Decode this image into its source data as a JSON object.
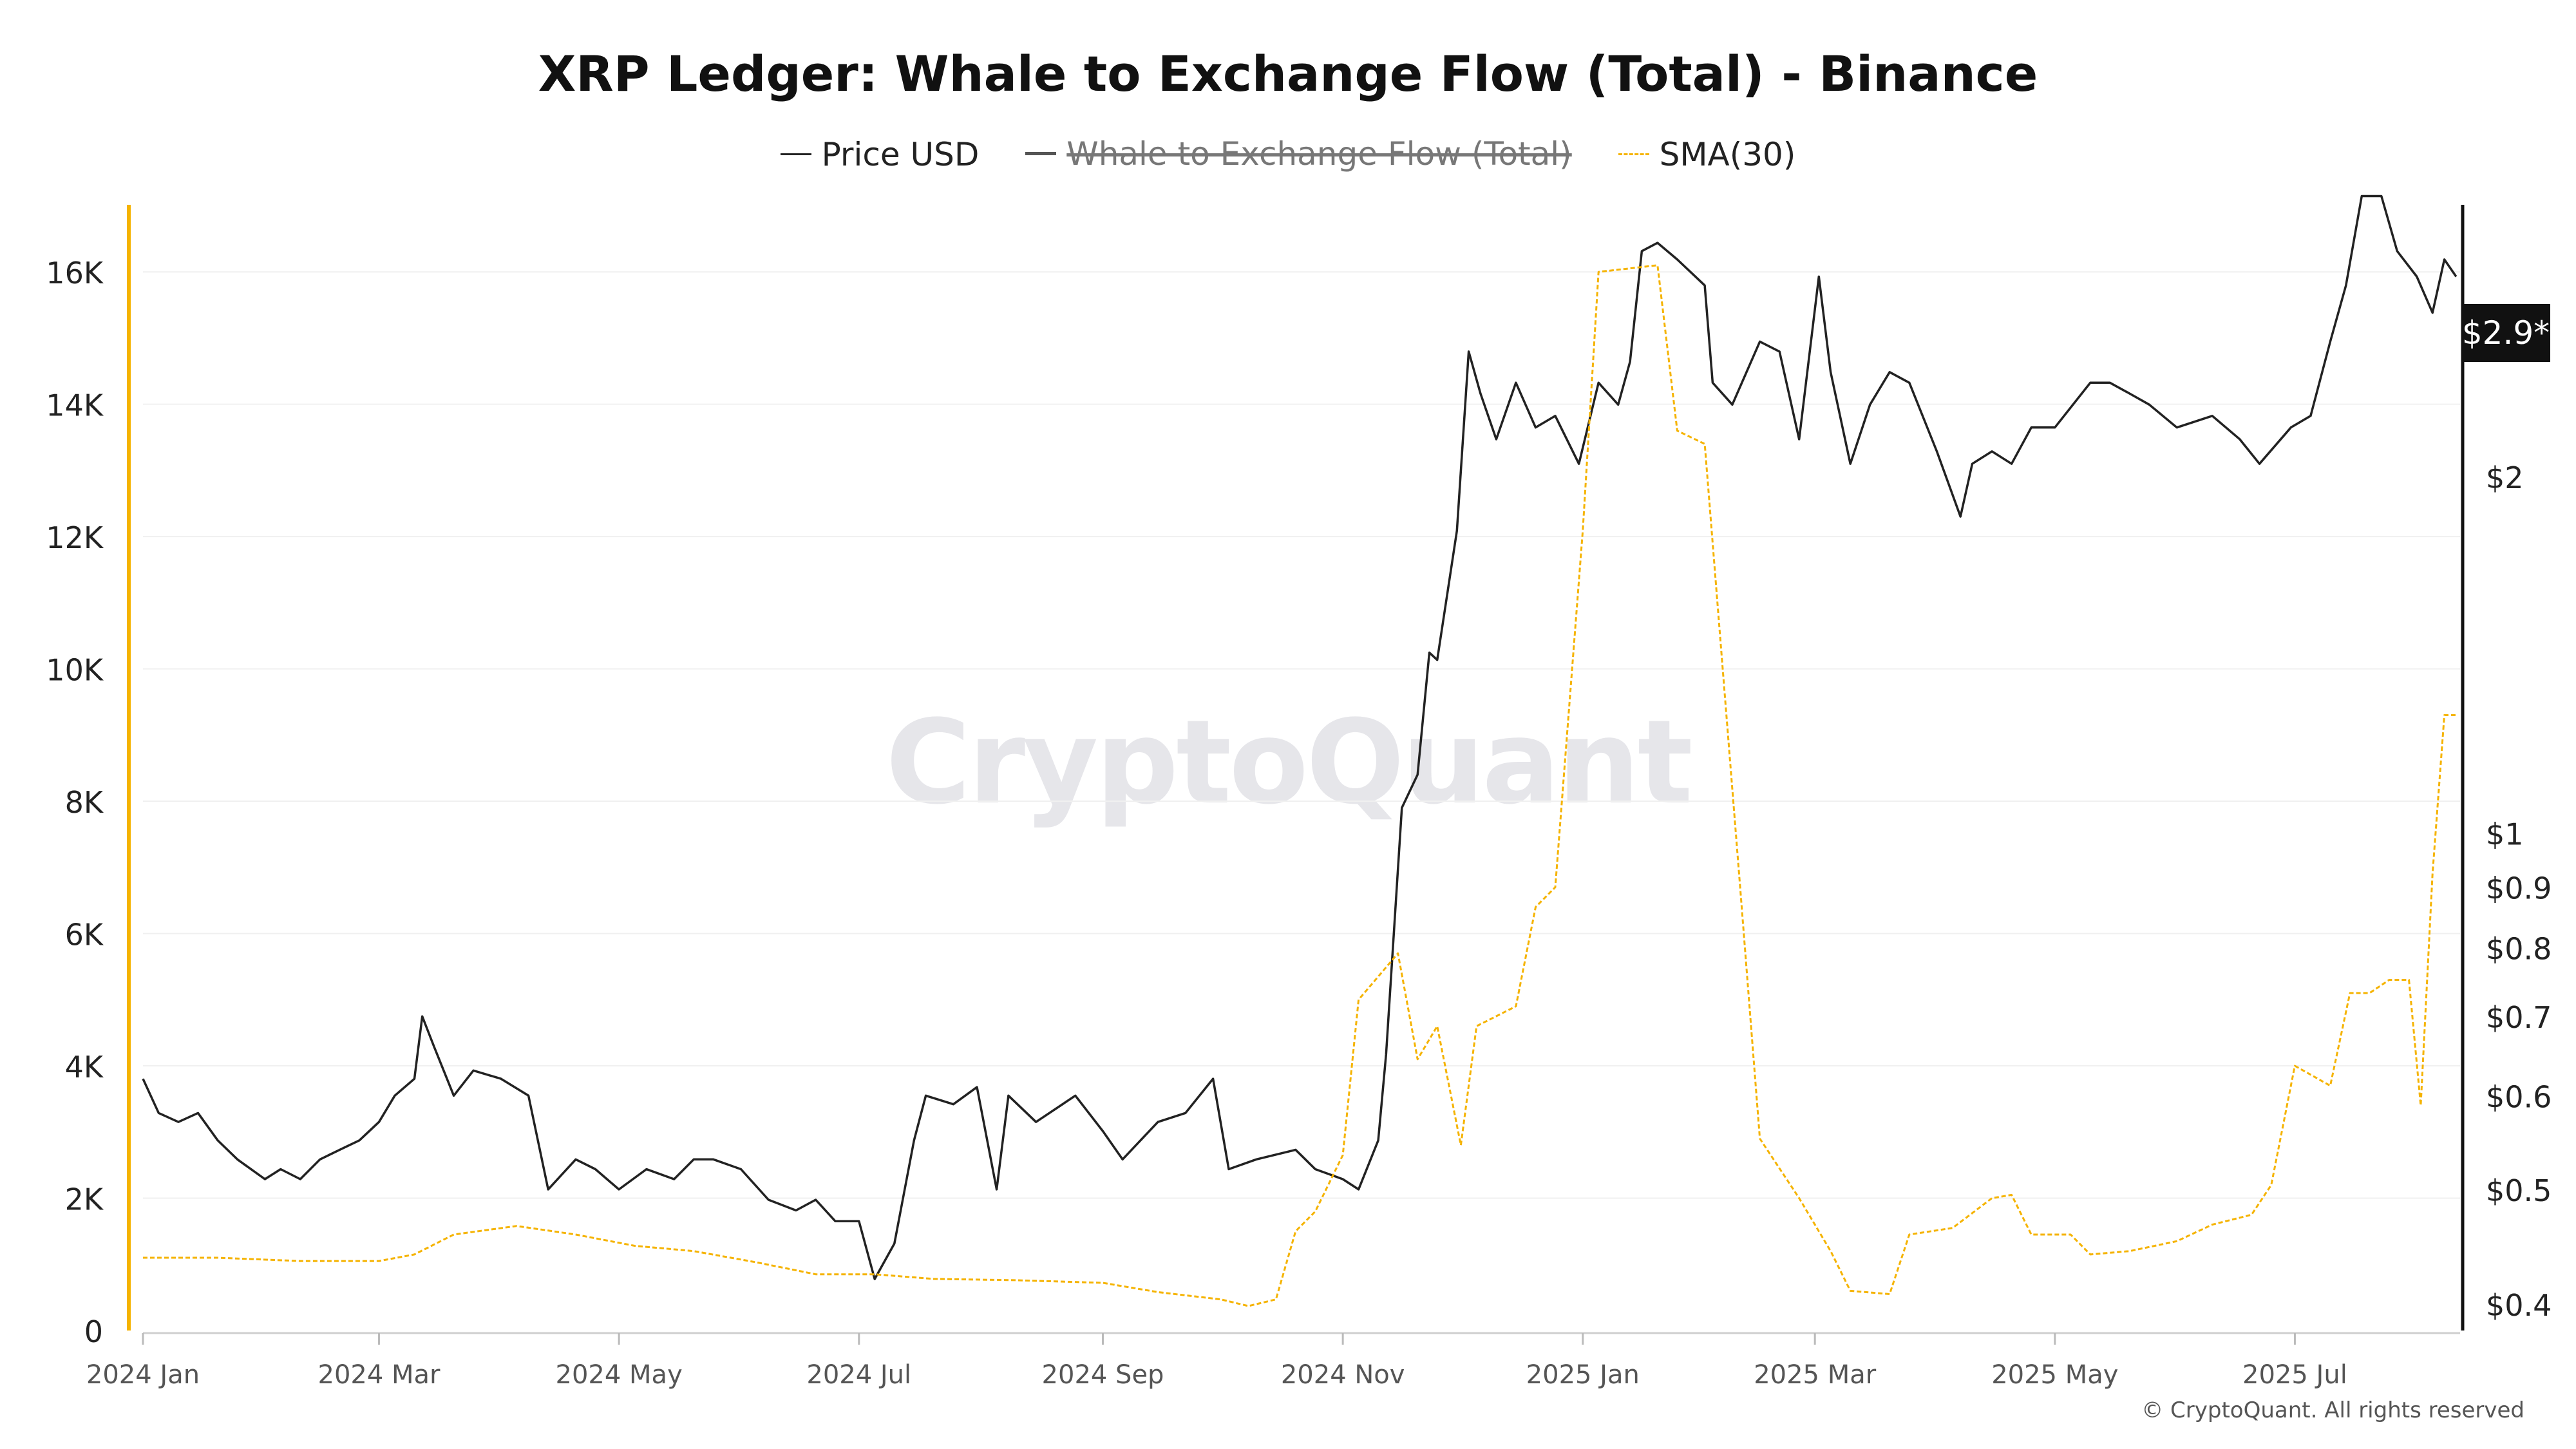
{
  "page": {
    "copyright": "© CryptoQuant. All rights reserved",
    "watermark": "CryptoQuant",
    "price_tag": "$2.9*"
  },
  "chart_data": {
    "type": "line",
    "title": "XRP Ledger: Whale to Exchange Flow (Total) - Binance",
    "legend": {
      "placement": "top-center",
      "entries": [
        {
          "name": "Price USD",
          "color": "#222222",
          "style": "solid",
          "hidden": false
        },
        {
          "name": "Whale to Exchange Flow (Total)",
          "color": "#555555",
          "style": "solid",
          "hidden": true
        },
        {
          "name": "SMA(30)",
          "color": "#f5b300",
          "style": "dashed",
          "hidden": false
        }
      ]
    },
    "colors": {
      "price": "#222222",
      "sma": "#f5b300",
      "left_axis": "#f5b300",
      "right_axis": "#111111",
      "grid": "#f0f0f0"
    },
    "grid": true,
    "x_axis": {
      "start": "2024-01-01",
      "end": "2025-08-12",
      "ticks": [
        {
          "date": "2024-01-01",
          "label": "2024 Jan"
        },
        {
          "date": "2024-03-01",
          "label": "2024 Mar"
        },
        {
          "date": "2024-05-01",
          "label": "2024 May"
        },
        {
          "date": "2024-07-01",
          "label": "2024 Jul"
        },
        {
          "date": "2024-09-01",
          "label": "2024 Sep"
        },
        {
          "date": "2024-11-01",
          "label": "2024 Nov"
        },
        {
          "date": "2025-01-01",
          "label": "2025 Jan"
        },
        {
          "date": "2025-03-01",
          "label": "2025 Mar"
        },
        {
          "date": "2025-05-01",
          "label": "2025 May"
        },
        {
          "date": "2025-07-01",
          "label": "2025 Jul"
        }
      ]
    },
    "y_left": {
      "min": 0,
      "max": 16800,
      "ticks": [
        {
          "value": 0,
          "label": "0"
        },
        {
          "value": 2000,
          "label": "2K"
        },
        {
          "value": 4000,
          "label": "4K"
        },
        {
          "value": 6000,
          "label": "6K"
        },
        {
          "value": 8000,
          "label": "8K"
        },
        {
          "value": 10000,
          "label": "10K"
        },
        {
          "value": 12000,
          "label": "12K"
        },
        {
          "value": 14000,
          "label": "14K"
        },
        {
          "value": 16000,
          "label": "16K"
        }
      ]
    },
    "y_right": {
      "scale": "log",
      "min": 0.38,
      "max": 3.3,
      "ticks": [
        {
          "value": 0.4,
          "label": "$0.4"
        },
        {
          "value": 0.5,
          "label": "$0.5"
        },
        {
          "value": 0.6,
          "label": "$0.6"
        },
        {
          "value": 0.7,
          "label": "$0.7"
        },
        {
          "value": 0.8,
          "label": "$0.8"
        },
        {
          "value": 0.9,
          "label": "$0.9"
        },
        {
          "value": 1,
          "label": "$1"
        },
        {
          "value": 2,
          "label": "$2"
        }
      ]
    },
    "series": [
      {
        "name": "Price USD",
        "axis": "right",
        "points": [
          [
            "2024-01-01",
            0.62
          ],
          [
            "2024-01-05",
            0.58
          ],
          [
            "2024-01-10",
            0.57
          ],
          [
            "2024-01-15",
            0.58
          ],
          [
            "2024-01-20",
            0.55
          ],
          [
            "2024-01-25",
            0.53
          ],
          [
            "2024-02-01",
            0.51
          ],
          [
            "2024-02-05",
            0.52
          ],
          [
            "2024-02-10",
            0.51
          ],
          [
            "2024-02-15",
            0.53
          ],
          [
            "2024-02-20",
            0.54
          ],
          [
            "2024-02-25",
            0.55
          ],
          [
            "2024-03-01",
            0.57
          ],
          [
            "2024-03-05",
            0.6
          ],
          [
            "2024-03-10",
            0.62
          ],
          [
            "2024-03-12",
            0.7
          ],
          [
            "2024-03-15",
            0.66
          ],
          [
            "2024-03-20",
            0.6
          ],
          [
            "2024-03-25",
            0.63
          ],
          [
            "2024-04-01",
            0.62
          ],
          [
            "2024-04-08",
            0.6
          ],
          [
            "2024-04-13",
            0.5
          ],
          [
            "2024-04-20",
            0.53
          ],
          [
            "2024-04-25",
            0.52
          ],
          [
            "2024-05-01",
            0.5
          ],
          [
            "2024-05-08",
            0.52
          ],
          [
            "2024-05-15",
            0.51
          ],
          [
            "2024-05-20",
            0.53
          ],
          [
            "2024-05-25",
            0.53
          ],
          [
            "2024-06-01",
            0.52
          ],
          [
            "2024-06-08",
            0.49
          ],
          [
            "2024-06-15",
            0.48
          ],
          [
            "2024-06-20",
            0.49
          ],
          [
            "2024-06-25",
            0.47
          ],
          [
            "2024-07-01",
            0.47
          ],
          [
            "2024-07-05",
            0.42
          ],
          [
            "2024-07-10",
            0.45
          ],
          [
            "2024-07-15",
            0.55
          ],
          [
            "2024-07-18",
            0.6
          ],
          [
            "2024-07-25",
            0.59
          ],
          [
            "2024-07-31",
            0.61
          ],
          [
            "2024-08-05",
            0.5
          ],
          [
            "2024-08-08",
            0.6
          ],
          [
            "2024-08-15",
            0.57
          ],
          [
            "2024-08-25",
            0.6
          ],
          [
            "2024-09-01",
            0.56
          ],
          [
            "2024-09-06",
            0.53
          ],
          [
            "2024-09-15",
            0.57
          ],
          [
            "2024-09-22",
            0.58
          ],
          [
            "2024-09-29",
            0.62
          ],
          [
            "2024-10-03",
            0.52
          ],
          [
            "2024-10-10",
            0.53
          ],
          [
            "2024-10-20",
            0.54
          ],
          [
            "2024-10-25",
            0.52
          ],
          [
            "2024-11-01",
            0.51
          ],
          [
            "2024-11-05",
            0.5
          ],
          [
            "2024-11-10",
            0.55
          ],
          [
            "2024-11-12",
            0.65
          ],
          [
            "2024-11-16",
            1.05
          ],
          [
            "2024-11-20",
            1.12
          ],
          [
            "2024-11-23",
            1.42
          ],
          [
            "2024-11-25",
            1.4
          ],
          [
            "2024-11-30",
            1.8
          ],
          [
            "2024-12-03",
            2.55
          ],
          [
            "2024-12-06",
            2.35
          ],
          [
            "2024-12-10",
            2.15
          ],
          [
            "2024-12-15",
            2.4
          ],
          [
            "2024-12-20",
            2.2
          ],
          [
            "2024-12-25",
            2.25
          ],
          [
            "2024-12-31",
            2.05
          ],
          [
            "2025-01-05",
            2.4
          ],
          [
            "2025-01-10",
            2.3
          ],
          [
            "2025-01-13",
            2.5
          ],
          [
            "2025-01-16",
            3.1
          ],
          [
            "2025-01-20",
            3.15
          ],
          [
            "2025-01-25",
            3.05
          ],
          [
            "2025-02-01",
            2.9
          ],
          [
            "2025-02-03",
            2.4
          ],
          [
            "2025-02-08",
            2.3
          ],
          [
            "2025-02-15",
            2.6
          ],
          [
            "2025-02-20",
            2.55
          ],
          [
            "2025-02-25",
            2.15
          ],
          [
            "2025-03-02",
            2.95
          ],
          [
            "2025-03-05",
            2.45
          ],
          [
            "2025-03-10",
            2.05
          ],
          [
            "2025-03-15",
            2.3
          ],
          [
            "2025-03-20",
            2.45
          ],
          [
            "2025-03-25",
            2.4
          ],
          [
            "2025-04-01",
            2.1
          ],
          [
            "2025-04-07",
            1.85
          ],
          [
            "2025-04-10",
            2.05
          ],
          [
            "2025-04-15",
            2.1
          ],
          [
            "2025-04-20",
            2.05
          ],
          [
            "2025-04-25",
            2.2
          ],
          [
            "2025-05-01",
            2.2
          ],
          [
            "2025-05-10",
            2.4
          ],
          [
            "2025-05-15",
            2.4
          ],
          [
            "2025-05-20",
            2.35
          ],
          [
            "2025-05-25",
            2.3
          ],
          [
            "2025-06-01",
            2.2
          ],
          [
            "2025-06-10",
            2.25
          ],
          [
            "2025-06-17",
            2.15
          ],
          [
            "2025-06-22",
            2.05
          ],
          [
            "2025-06-30",
            2.2
          ],
          [
            "2025-07-05",
            2.25
          ],
          [
            "2025-07-10",
            2.6
          ],
          [
            "2025-07-14",
            2.9
          ],
          [
            "2025-07-18",
            3.45
          ],
          [
            "2025-07-23",
            3.45
          ],
          [
            "2025-07-27",
            3.1
          ],
          [
            "2025-08-01",
            2.95
          ],
          [
            "2025-08-05",
            2.75
          ],
          [
            "2025-08-08",
            3.05
          ],
          [
            "2025-08-11",
            2.95
          ]
        ]
      },
      {
        "name": "SMA(30)",
        "axis": "left",
        "points": [
          [
            "2024-01-01",
            1100
          ],
          [
            "2024-01-20",
            1100
          ],
          [
            "2024-02-10",
            1050
          ],
          [
            "2024-03-01",
            1050
          ],
          [
            "2024-03-10",
            1150
          ],
          [
            "2024-03-20",
            1450
          ],
          [
            "2024-04-05",
            1580
          ],
          [
            "2024-04-20",
            1450
          ],
          [
            "2024-05-05",
            1280
          ],
          [
            "2024-05-20",
            1200
          ],
          [
            "2024-06-05",
            1030
          ],
          [
            "2024-06-20",
            850
          ],
          [
            "2024-07-05",
            850
          ],
          [
            "2024-07-20",
            780
          ],
          [
            "2024-08-10",
            760
          ],
          [
            "2024-09-01",
            720
          ],
          [
            "2024-09-15",
            580
          ],
          [
            "2024-10-01",
            470
          ],
          [
            "2024-10-08",
            370
          ],
          [
            "2024-10-15",
            470
          ],
          [
            "2024-10-20",
            1500
          ],
          [
            "2024-10-25",
            1800
          ],
          [
            "2024-11-01",
            2650
          ],
          [
            "2024-11-05",
            5000
          ],
          [
            "2024-11-15",
            5700
          ],
          [
            "2024-11-20",
            4100
          ],
          [
            "2024-11-25",
            4600
          ],
          [
            "2024-12-01",
            2800
          ],
          [
            "2024-12-05",
            4600
          ],
          [
            "2024-12-15",
            4900
          ],
          [
            "2024-12-20",
            6400
          ],
          [
            "2024-12-25",
            6700
          ],
          [
            "2025-01-01",
            12100
          ],
          [
            "2025-01-05",
            16000
          ],
          [
            "2025-01-20",
            16100
          ],
          [
            "2025-01-25",
            13600
          ],
          [
            "2025-02-01",
            13400
          ],
          [
            "2025-02-10",
            6700
          ],
          [
            "2025-02-15",
            2900
          ],
          [
            "2025-02-25",
            2000
          ],
          [
            "2025-03-05",
            1200
          ],
          [
            "2025-03-10",
            600
          ],
          [
            "2025-03-20",
            550
          ],
          [
            "2025-03-25",
            1450
          ],
          [
            "2025-04-05",
            1550
          ],
          [
            "2025-04-15",
            2000
          ],
          [
            "2025-04-20",
            2050
          ],
          [
            "2025-04-25",
            1450
          ],
          [
            "2025-05-05",
            1450
          ],
          [
            "2025-05-10",
            1150
          ],
          [
            "2025-05-20",
            1200
          ],
          [
            "2025-06-01",
            1350
          ],
          [
            "2025-06-10",
            1600
          ],
          [
            "2025-06-20",
            1750
          ],
          [
            "2025-06-25",
            2200
          ],
          [
            "2025-07-01",
            4000
          ],
          [
            "2025-07-10",
            3700
          ],
          [
            "2025-07-15",
            5100
          ],
          [
            "2025-07-20",
            5100
          ],
          [
            "2025-07-25",
            5300
          ],
          [
            "2025-07-30",
            5300
          ],
          [
            "2025-08-02",
            3400
          ],
          [
            "2025-08-05",
            6900
          ],
          [
            "2025-08-08",
            9300
          ],
          [
            "2025-08-11",
            9300
          ]
        ]
      }
    ]
  }
}
